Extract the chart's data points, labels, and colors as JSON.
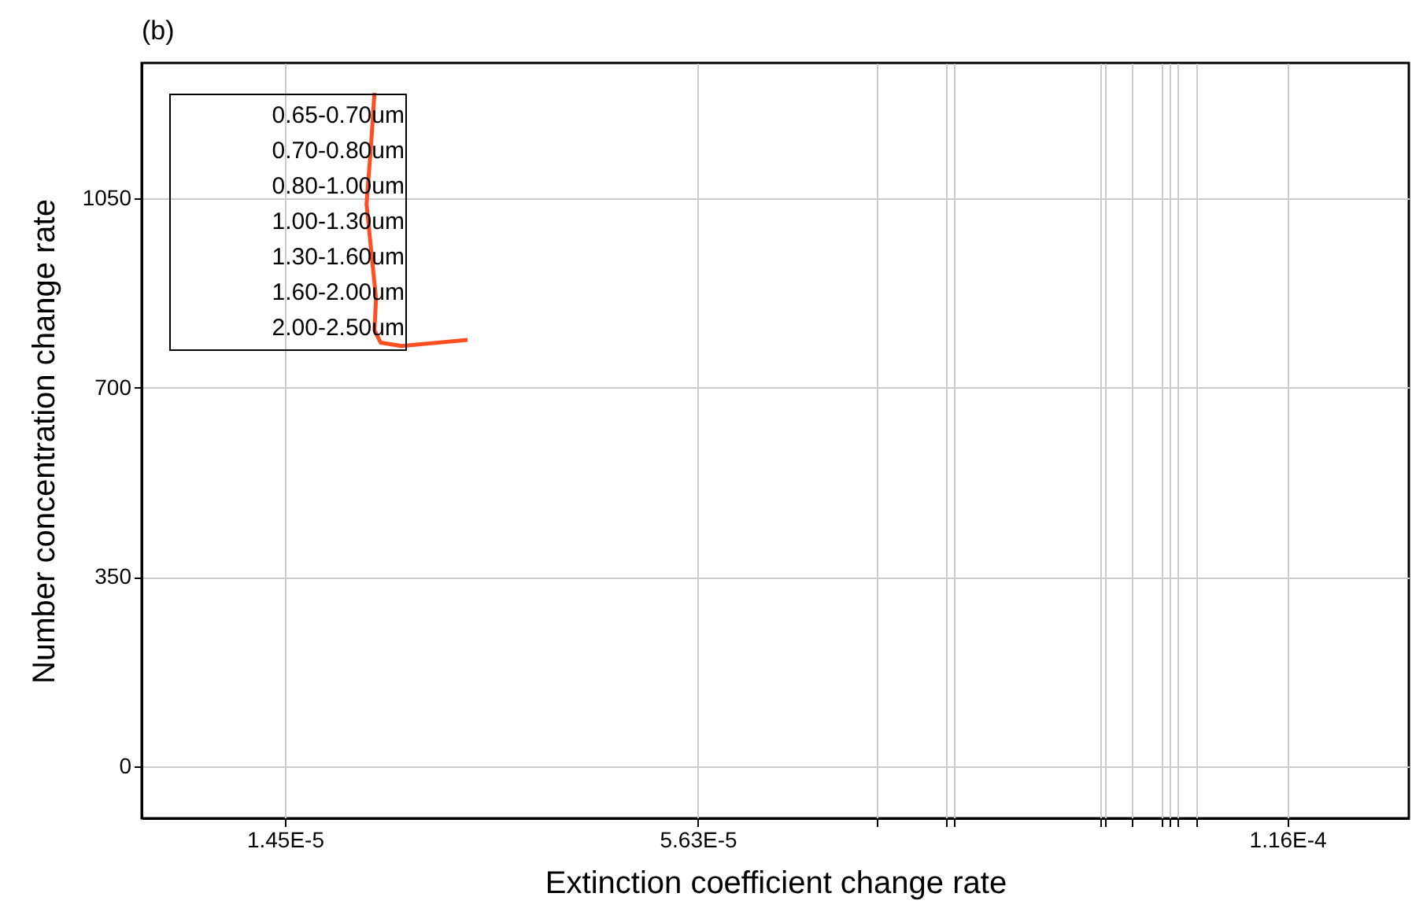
{
  "chart_data": {
    "type": "line",
    "title": "(b)",
    "xlabel": "Extinction coefficient change rate",
    "ylabel": "Number concentration change rate",
    "x": [
      2.357e-05,
      2.325e-05,
      2.277e-05,
      2.325e-05,
      2.373e-05,
      2.357e-05,
      2.42e-05,
      2.63e-05,
      3.3e-05
    ],
    "series": [
      {
        "color": "#ff4e1f",
        "values": [
          1245,
          1155,
          1039,
          951,
          864,
          806,
          783,
          777,
          788
        ]
      }
    ],
    "xlim": [
      0,
      0.0001283
    ],
    "ylim": [
      -96,
      1300
    ],
    "xticks": [
      {
        "value": 1.45e-05,
        "label": "1.45E-5"
      },
      {
        "value": 5.63e-05,
        "label": "5.63E-5"
      },
      {
        "value": 7.44e-05,
        "label": null
      },
      {
        "value": 8.14e-05,
        "label": null
      },
      {
        "value": 8.22e-05,
        "label": null
      },
      {
        "value": 9.7e-05,
        "label": null
      },
      {
        "value": 9.76e-05,
        "label": null
      },
      {
        "value": 0.0001002,
        "label": null
      },
      {
        "value": 0.0001032,
        "label": null
      },
      {
        "value": 0.0001041,
        "label": null
      },
      {
        "value": 0.0001048,
        "label": null
      },
      {
        "value": 0.0001068,
        "label": null
      },
      {
        "value": 0.000116,
        "label": "1.16E-4"
      }
    ],
    "yticks": [
      0,
      350,
      700,
      1050
    ],
    "annotations": [
      "0.65-0.70um",
      "0.70-0.80um",
      "0.80-1.00um",
      "1.00-1.30um",
      "1.30-1.60um",
      "1.60-2.00um",
      "2.00-2.50um"
    ],
    "grid": true,
    "marker": "none",
    "line_style": "solid"
  }
}
